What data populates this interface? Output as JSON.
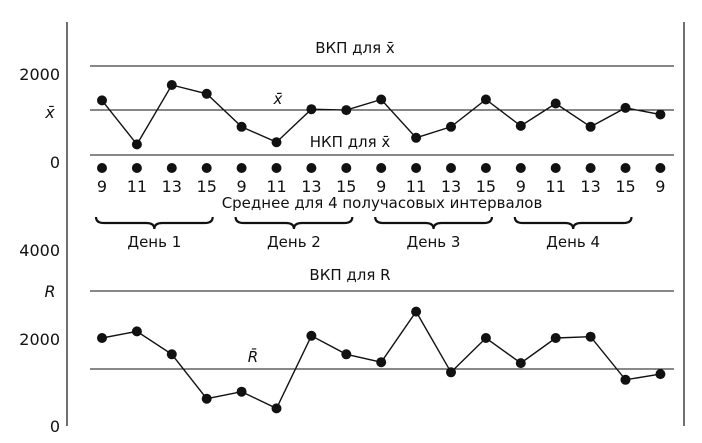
{
  "chart_data": [
    {
      "type": "line",
      "name": "x-bar",
      "ylabel": "x̄",
      "ylim": [
        0,
        2000
      ],
      "y_ticks": [
        "0",
        "2000"
      ],
      "ucl_label": "ВКП для x̄",
      "lcl_label": "НКП для x̄",
      "center_label": "x̄̄",
      "ucl": 2200,
      "center": 1200,
      "lcl": 150,
      "values": [
        1400,
        400,
        1750,
        1550,
        800,
        450,
        1200,
        1180,
        1420,
        550,
        800,
        1420,
        820,
        1330,
        800,
        1230,
        1080
      ]
    },
    {
      "type": "line",
      "name": "R",
      "ylabel": "R",
      "ylim": [
        0,
        4000
      ],
      "y_ticks": [
        "0",
        "2000",
        "4000"
      ],
      "ucl_label": "ВКП для R",
      "center_label": "R̄",
      "ucl": 3050,
      "center": 1250,
      "values": [
        2000,
        2150,
        1630,
        620,
        780,
        400,
        2050,
        1630,
        1450,
        2600,
        1220,
        2000,
        1430,
        2000,
        2030,
        1050,
        1180
      ]
    }
  ],
  "x_ticks": [
    "9",
    "11",
    "13",
    "15",
    "9",
    "11",
    "13",
    "15",
    "9",
    "11",
    "13",
    "15",
    "9",
    "11",
    "13",
    "15",
    "9"
  ],
  "xlabel": "Среднее для 4 получасовых интервалов",
  "days": [
    "День 1",
    "День 2",
    "День 3",
    "День 4"
  ]
}
